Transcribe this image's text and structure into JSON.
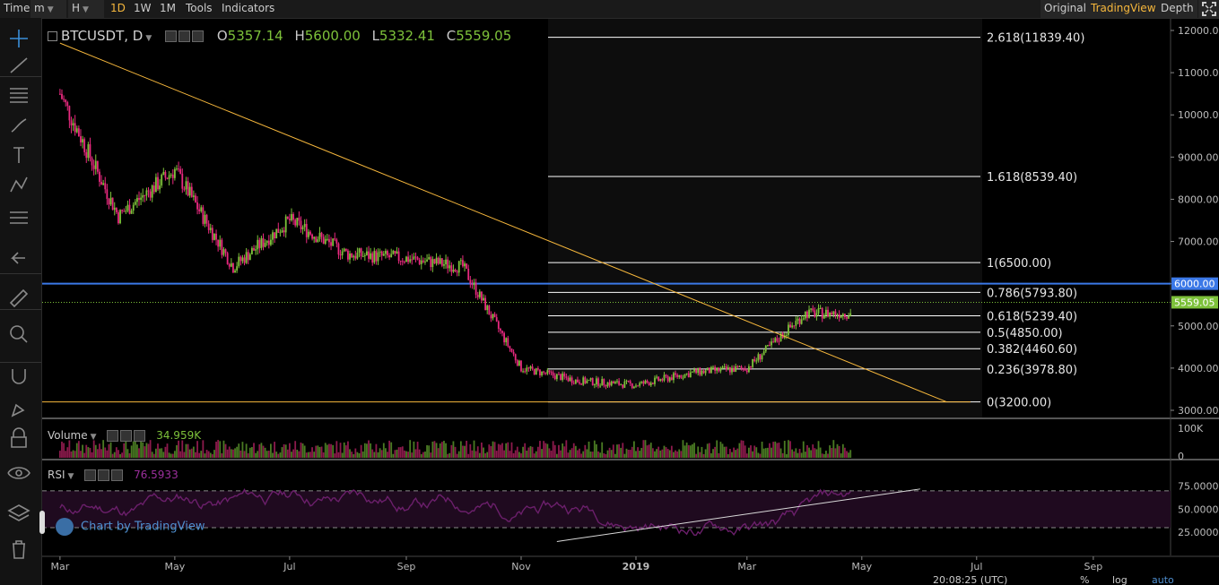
{
  "toolbar": {
    "time_label": "Time",
    "interval_select": "m",
    "hour_select": "H",
    "intervals": [
      "1D",
      "1W",
      "1M"
    ],
    "active_interval": "1D",
    "tools_label": "Tools",
    "indicators_label": "Indicators",
    "view_original": "Original",
    "view_tradingview": "TradingView",
    "active_view": "TradingView",
    "depth_label": "Depth"
  },
  "sidebar": {
    "icons": [
      "crosshair-icon",
      "trend-line-icon",
      "fib-lines-icon",
      "brush-icon",
      "text-icon",
      "pattern-icon",
      "measure-lines-icon",
      "back-arrow-icon",
      "ruler-icon",
      "zoom-icon",
      "magnet-icon",
      "lock-draw-icon",
      "lock-icon",
      "eye-icon",
      "layers-icon",
      "trash-icon"
    ]
  },
  "legend": {
    "symbol": "BTCUSDT, D",
    "open_label": "O",
    "open": "5357.14",
    "high_label": "H",
    "high": "5600.00",
    "low_label": "L",
    "low": "5332.41",
    "close_label": "C",
    "close": "5559.05"
  },
  "volume_legend": {
    "label": "Volume",
    "value": "34.959K"
  },
  "rsi_legend": {
    "label": "RSI",
    "value": "76.5933"
  },
  "watermark": "Chart by TradingView",
  "status": {
    "time": "20:08:25 (UTC)",
    "percent": "%",
    "log": "log",
    "auto": "auto"
  },
  "colors": {
    "up": "#7dc13a",
    "down": "#e8297f",
    "fib": "#ffffff",
    "trend": "#f6b73c",
    "support": "#3b78e7",
    "rsi": "#6b1f6b",
    "price_badge": "#7dc13a",
    "level_badge": "#3b78e7"
  },
  "chart_data": [
    {
      "type": "candlestick",
      "title": "",
      "series_name": "BTCUSDT, D",
      "x_ticks": [
        "Mar",
        "May",
        "Jul",
        "Sep",
        "Nov",
        "2019",
        "Mar",
        "May",
        "Jul",
        "Sep"
      ],
      "y_ticks": [
        12000,
        11000,
        10000,
        9000,
        8000,
        7000,
        6000,
        5000,
        4000,
        3000
      ],
      "ylim": [
        2800,
        12200
      ],
      "last_price": 5559.05,
      "last_price_label": "5559.05",
      "horizontal_level": 6000,
      "horizontal_level_label": "6000.00",
      "support_level": 3200,
      "price_path_monthly": [
        {
          "month": "2018-03",
          "price": 10500
        },
        {
          "month": "2018-04",
          "price": 7600
        },
        {
          "month": "2018-05",
          "price": 8700
        },
        {
          "month": "2018-06",
          "price": 6400
        },
        {
          "month": "2018-07",
          "price": 7500
        },
        {
          "month": "2018-08",
          "price": 6700
        },
        {
          "month": "2018-09",
          "price": 6600
        },
        {
          "month": "2018-10",
          "price": 6400
        },
        {
          "month": "2018-11",
          "price": 4000
        },
        {
          "month": "2018-12",
          "price": 3700
        },
        {
          "month": "2019-01",
          "price": 3600
        },
        {
          "month": "2019-02",
          "price": 3900
        },
        {
          "month": "2019-03",
          "price": 4000
        },
        {
          "month": "2019-04",
          "price": 5300
        }
      ],
      "fibonacci": [
        {
          "label": "2.618(11839.40)",
          "price": 11839.4
        },
        {
          "label": "1.618(8539.40)",
          "price": 8539.4
        },
        {
          "label": "1(6500.00)",
          "price": 6500.0
        },
        {
          "label": "0.786(5793.80)",
          "price": 5793.8
        },
        {
          "label": "0.618(5239.40)",
          "price": 5239.4
        },
        {
          "label": "0.5(4850.00)",
          "price": 4850.0
        },
        {
          "label": "0.382(4460.60)",
          "price": 4460.6
        },
        {
          "label": "0.236(3978.80)",
          "price": 3978.8
        },
        {
          "label": "0(3200.00)",
          "price": 3200.0
        }
      ],
      "trendline": {
        "from": {
          "date": "2018-03-01",
          "price": 11700
        },
        "to": {
          "date": "2019-06-15",
          "price": 3200
        }
      }
    },
    {
      "type": "bar",
      "title": "",
      "series_name": "Volume",
      "y_ticks_labels": [
        "100K"
      ],
      "last_value_label": "34.959K"
    },
    {
      "type": "line",
      "title": "",
      "series_name": "RSI",
      "y_ticks": [
        75,
        50,
        25
      ],
      "y_tick_labels": [
        "75.0000",
        "50.0000",
        "25.0000"
      ],
      "band": [
        30,
        70
      ],
      "last_value": 76.5933,
      "trendline": {
        "from": {
          "date": "2018-11-20",
          "rsi": 15
        },
        "to": {
          "date": "2019-06-01",
          "rsi": 72
        }
      }
    }
  ]
}
